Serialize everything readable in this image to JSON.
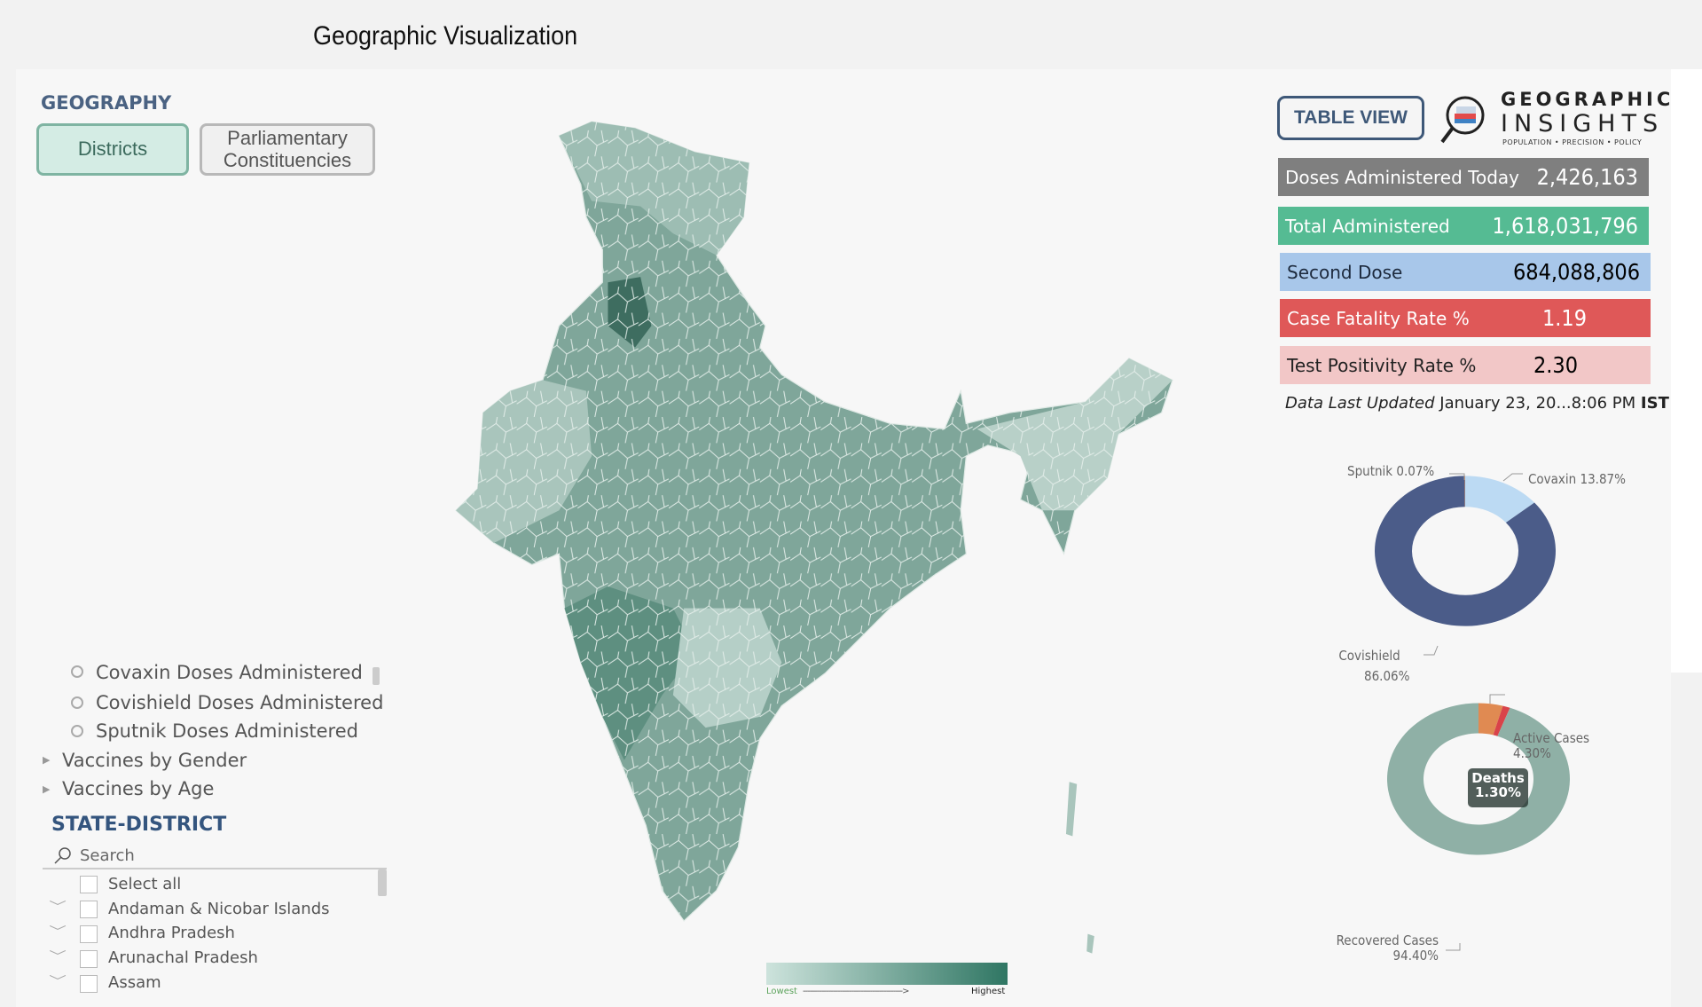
{
  "page_title": "Geographic Visualization",
  "geography": {
    "label": "GEOGRAPHY",
    "buttons": [
      {
        "label": "Districts",
        "active": true
      },
      {
        "label": "Parliamentary Constituencies",
        "active": false
      }
    ]
  },
  "header": {
    "table_view_label": "TABLE VIEW",
    "logo": {
      "line1": "GEOGRAPHIC",
      "line2": "INSIGHTS",
      "tagline": "POPULATION • PRECISION • POLICY"
    }
  },
  "kpis": [
    {
      "label": "Doses Administered Today",
      "value": "2,426,163",
      "color": "#7f7f7f"
    },
    {
      "label": "Total Administered",
      "value": "1,618,031,796",
      "color": "#55bb93"
    },
    {
      "label": "Second Dose",
      "value": "684,088,806",
      "color": "#a8c7ea"
    },
    {
      "label": "Case Fatality Rate %",
      "value": "1.19",
      "color": "#df5858"
    },
    {
      "label": "Test Positivity Rate %",
      "value": "2.30",
      "color": "#f2c7c7"
    }
  ],
  "updated": {
    "label": "Data Last Updated",
    "value": "January 23, 20...8:06 PM",
    "tz": "IST"
  },
  "metric_options": [
    "Covaxin Doses Administered",
    "Covishield Doses Administered",
    "Sputnik Doses Administered"
  ],
  "metric_groups": [
    "Vaccines by Gender",
    "Vaccines by Age"
  ],
  "state_district": {
    "label": "STATE-DISTRICT",
    "search_placeholder": "Search",
    "select_all": "Select all",
    "items": [
      "Andaman & Nicobar Islands",
      "Andhra Pradesh",
      "Arunachal Pradesh",
      "Assam"
    ]
  },
  "map_legend": {
    "low": "Lowest",
    "high": "Highest",
    "dashes": "------------------------------------------->",
    "colors": [
      "#cde3dc",
      "#2f7663"
    ]
  },
  "chart_data": [
    {
      "type": "pie",
      "donut": true,
      "slices": [
        {
          "name": "Covaxin",
          "value": 13.87,
          "label": "Covaxin 13.87%",
          "color": "#bcdaf3"
        },
        {
          "name": "Covishield",
          "value": 86.06,
          "label": "Covishield 86.06%",
          "color": "#4b5c89"
        },
        {
          "name": "Sputnik",
          "value": 0.07,
          "label": "Sputnik 0.07%",
          "color": "#e88c4e"
        }
      ]
    },
    {
      "type": "pie",
      "donut": true,
      "slices": [
        {
          "name": "Active Cases",
          "value": 4.3,
          "label": "4.30%",
          "color": "#e08a52"
        },
        {
          "name": "Deaths",
          "value": 1.3,
          "label": "1.30%",
          "color": "#d9434a"
        },
        {
          "name": "Recovered Cases",
          "value": 94.4,
          "label": "94.40%",
          "color": "#8fb0a6"
        }
      ]
    }
  ]
}
